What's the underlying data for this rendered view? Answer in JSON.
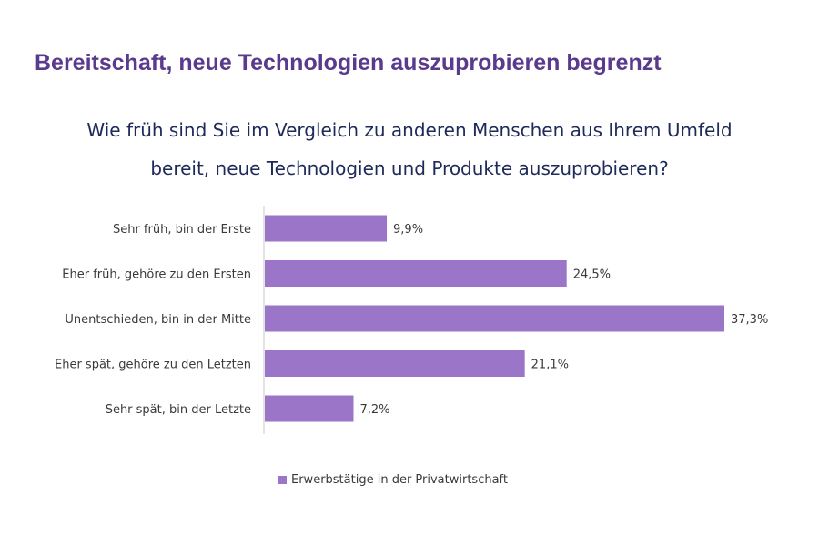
{
  "headline": "Bereitschaft, neue Technologien auszuprobieren begrenzt",
  "question": {
    "line1": "Wie früh sind Sie im Vergleich zu anderen Menschen aus Ihrem Umfeld",
    "line2": "bereit, neue Technologien und Produkte auszuprobieren?"
  },
  "colors": {
    "headline": "#5a3a8c",
    "question": "#1e2a5a",
    "bar": "#9b76c8",
    "axis": "#c8c8c8",
    "text": "#3a3a3a"
  },
  "chart_data": {
    "type": "bar",
    "orientation": "horizontal",
    "categories": [
      "Sehr früh, bin der Erste",
      "Eher früh, gehöre zu den Ersten",
      "Unentschieden, bin in der Mitte",
      "Eher spät, gehöre zu den Letzten",
      "Sehr spät, bin der Letzte"
    ],
    "series": [
      {
        "name": "Erwerbstätige in der Privatwirtschaft",
        "values": [
          9.9,
          24.5,
          37.3,
          21.1,
          7.2
        ],
        "labels": [
          "9,9%",
          "24,5%",
          "37,3%",
          "21,1%",
          "7,2%"
        ]
      }
    ],
    "xlim": [
      0,
      37.3
    ],
    "grid": false,
    "legend_position": "bottom"
  }
}
